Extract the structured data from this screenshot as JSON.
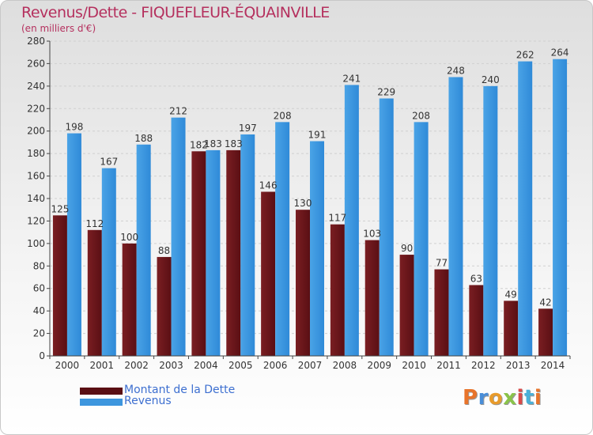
{
  "chart_data": {
    "type": "bar",
    "title": "Revenus/Dette - FIQUEFLEUR-ÉQUAINVILLE",
    "subtitle": "(en milliers d'€)",
    "categories": [
      "2000",
      "2001",
      "2002",
      "2003",
      "2004",
      "2005",
      "2006",
      "2007",
      "2008",
      "2009",
      "2010",
      "2011",
      "2012",
      "2013",
      "2014"
    ],
    "series": [
      {
        "name": "Montant de la Dette",
        "color": "#7a1e22",
        "values": [
          125,
          112,
          100,
          88,
          182,
          183,
          146,
          130,
          117,
          103,
          90,
          77,
          63,
          49,
          42
        ]
      },
      {
        "name": "Revenus",
        "color": "#4aa3e6",
        "values": [
          198,
          167,
          188,
          212,
          183,
          197,
          208,
          191,
          241,
          229,
          208,
          248,
          240,
          262,
          264
        ]
      }
    ],
    "yticks": [
      0,
      20,
      40,
      60,
      80,
      100,
      120,
      140,
      160,
      180,
      200,
      220,
      240,
      260,
      280
    ],
    "ylim": [
      0,
      280
    ],
    "grid": true,
    "legend_position": "bottom-left"
  },
  "logo": {
    "text": "Proxiti"
  }
}
